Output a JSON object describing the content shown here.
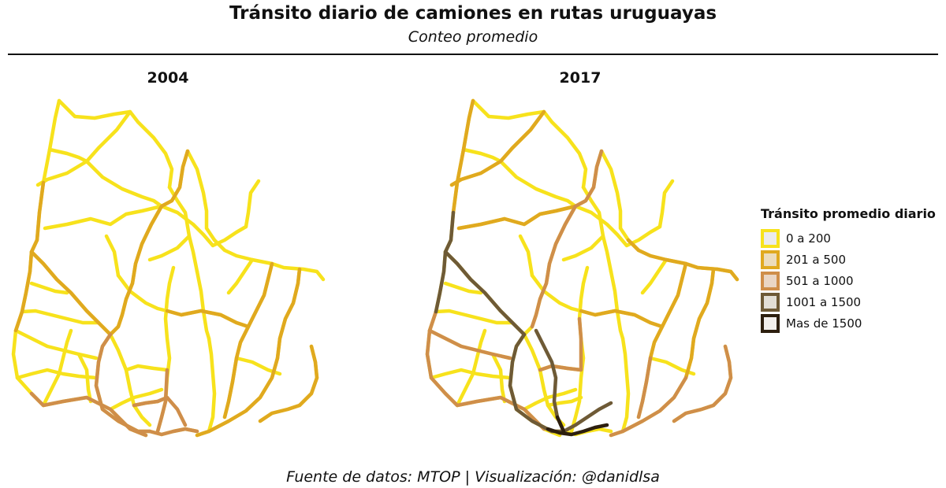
{
  "header": {
    "title": "Tránsito diario de camiones en rutas uruguayas",
    "subtitle": "Conteo promedio"
  },
  "panels": [
    {
      "label": "2004"
    },
    {
      "label": "2017"
    }
  ],
  "legend": {
    "title": "Tránsito promedio diario",
    "items": [
      {
        "label": "0 a 200",
        "color": "#f7e21c",
        "fill": "#ebebeb"
      },
      {
        "label": "201 a 500",
        "color": "#e0a91f",
        "fill": "#ecdcbc"
      },
      {
        "label": "501 a 1000",
        "color": "#cf8e4a",
        "fill": "#ead6c5"
      },
      {
        "label": "1001 a 1500",
        "color": "#6e5a36",
        "fill": "#e3dfd6"
      },
      {
        "label": "Mas de 1500",
        "color": "#2d1f0f",
        "fill": "#f2efec"
      }
    ]
  },
  "caption": "Fuente de datos: MTOP | Visualización: @danidlsa"
}
